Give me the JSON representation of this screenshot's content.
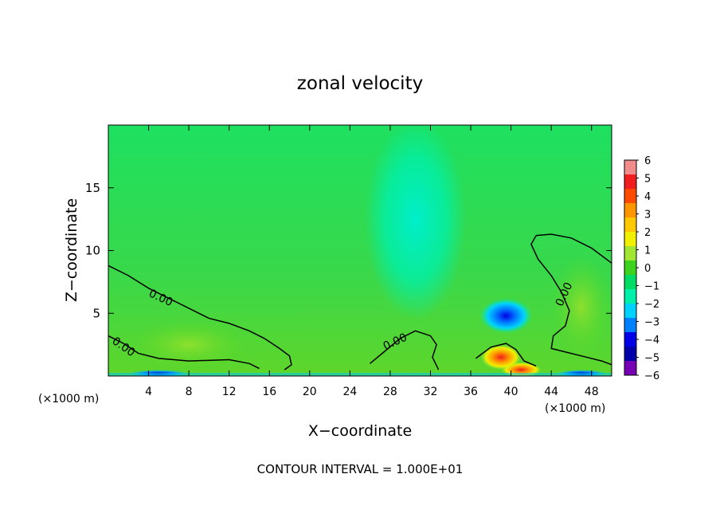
{
  "chart_data": {
    "type": "heatmap",
    "title": "zonal velocity",
    "xlabel": "X−coordinate",
    "ylabel": "Z−coordinate",
    "x_unit_left": "(×1000 m)",
    "x_unit_right": "(×1000 m)",
    "footer": "CONTOUR INTERVAL = 1.000E+01",
    "xlim": [
      0,
      50
    ],
    "ylim": [
      0,
      20
    ],
    "xticks": [
      4,
      8,
      12,
      16,
      20,
      24,
      28,
      32,
      36,
      40,
      44,
      48
    ],
    "yticks": [
      5,
      10,
      15
    ],
    "contour_labels": [
      {
        "text": "0.00",
        "x": 5.2,
        "y": 6.2,
        "angle": 25
      },
      {
        "text": "0.00",
        "x": 1.5,
        "y": 2.3,
        "angle": 35
      },
      {
        "text": "0.00",
        "x": 28.5,
        "y": 2.7,
        "angle": -25
      },
      {
        "text": "0.00",
        "x": 45.3,
        "y": 6.5,
        "angle": -65
      }
    ],
    "contours": [
      [
        [
          0,
          8.8
        ],
        [
          2,
          8.0
        ],
        [
          4,
          7.0
        ],
        [
          6,
          6.2
        ],
        [
          8,
          5.4
        ],
        [
          10,
          4.6
        ],
        [
          12,
          4.2
        ],
        [
          14,
          3.6
        ],
        [
          15.5,
          3.0
        ],
        [
          17,
          2.2
        ],
        [
          18,
          1.6
        ],
        [
          18.2,
          0.9
        ],
        [
          17.5,
          0.5
        ]
      ],
      [
        [
          0,
          3.2
        ],
        [
          1.5,
          2.6
        ],
        [
          3,
          1.8
        ],
        [
          5,
          1.4
        ],
        [
          8,
          1.2
        ],
        [
          12,
          1.3
        ],
        [
          14,
          1.0
        ],
        [
          15,
          0.6
        ]
      ],
      [
        [
          26,
          1.0
        ],
        [
          27.5,
          2.0
        ],
        [
          29,
          3.0
        ],
        [
          30.5,
          3.6
        ],
        [
          32,
          3.2
        ],
        [
          32.6,
          2.5
        ],
        [
          32.2,
          1.5
        ],
        [
          32.8,
          0.5
        ]
      ],
      [
        [
          42.5,
          11.2
        ],
        [
          42,
          10.5
        ],
        [
          42.7,
          9.3
        ],
        [
          44,
          8.0
        ],
        [
          45,
          6.7
        ],
        [
          45.8,
          5.2
        ],
        [
          45.4,
          4.0
        ],
        [
          44.2,
          3.2
        ],
        [
          44,
          2.2
        ],
        [
          45.5,
          1.9
        ],
        [
          47,
          1.6
        ],
        [
          49,
          1.2
        ],
        [
          50,
          0.9
        ]
      ],
      [
        [
          42.5,
          11.2
        ],
        [
          44,
          11.3
        ],
        [
          46,
          11.0
        ],
        [
          48,
          10.2
        ],
        [
          50,
          9.0
        ]
      ],
      [
        [
          36.5,
          1.4
        ],
        [
          38,
          2.3
        ],
        [
          39.5,
          2.6
        ],
        [
          40.5,
          2.1
        ],
        [
          41.3,
          1.2
        ],
        [
          42.5,
          0.8
        ]
      ]
    ],
    "colorbar": {
      "ticks": [
        6,
        5,
        4,
        3,
        2,
        1,
        0,
        -1,
        -2,
        -3,
        -4,
        -5,
        -6
      ],
      "tick_labels": [
        "6",
        "5",
        "4",
        "3",
        "2",
        "1",
        "0",
        "−1",
        "−2",
        "−3",
        "−4",
        "−5",
        "−6"
      ],
      "colors": [
        "#f08c8c",
        "#f01e1e",
        "#ff4b00",
        "#ff9600",
        "#ffc800",
        "#f0f000",
        "#a0e632",
        "#3cd21e",
        "#00dc64",
        "#00f0aa",
        "#00d2ff",
        "#0080ff",
        "#0000e6",
        "#0000aa",
        "#7800b4"
      ]
    },
    "features": [
      {
        "x": 39.5,
        "z": 4.8,
        "value": -4.2,
        "rx": 2.6,
        "rz": 1.4
      },
      {
        "x": 30.5,
        "z": 12.5,
        "value": -1.6,
        "rx": 5,
        "rz": 8
      },
      {
        "x": 41,
        "z": 0.5,
        "value": 4.5,
        "rx": 2.0,
        "rz": 0.6
      },
      {
        "x": 5,
        "z": 0.2,
        "value": -3.5,
        "rx": 3.0,
        "rz": 0.3
      },
      {
        "x": 47,
        "z": 0.2,
        "value": -3.5,
        "rx": 2.5,
        "rz": 0.3
      },
      {
        "x": 8,
        "z": 2.5,
        "value": 0.8,
        "rx": 6,
        "rz": 2
      },
      {
        "x": 47,
        "z": 5.5,
        "value": 0.9,
        "rx": 3,
        "rz": 4
      },
      {
        "x": 39,
        "z": 1.5,
        "value": 2.5,
        "rx": 2,
        "rz": 1.0
      }
    ]
  }
}
